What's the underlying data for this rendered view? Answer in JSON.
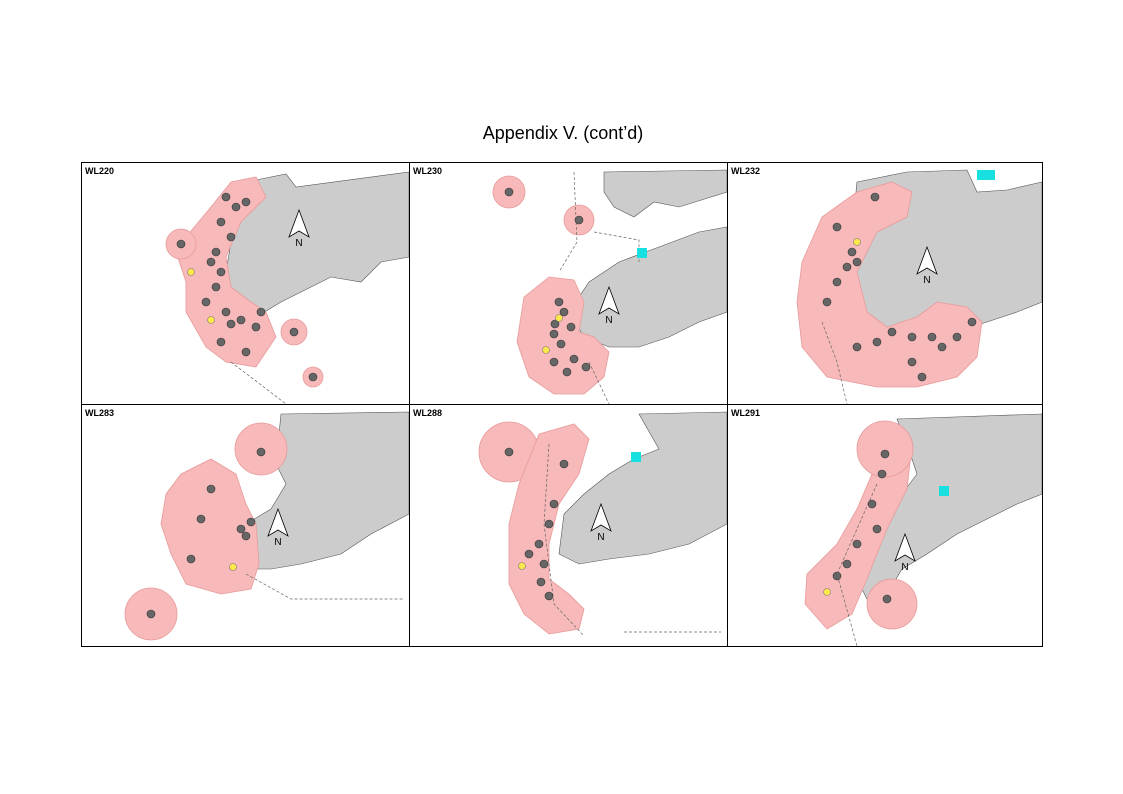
{
  "header": {
    "title": "Appendix V.  (cont’d)"
  },
  "panels": [
    {
      "label": "WL220",
      "north": "N"
    },
    {
      "label": "WL230",
      "north": "N"
    },
    {
      "label": "WL232",
      "north": "N"
    },
    {
      "label": "WL283",
      "north": "N"
    },
    {
      "label": "WL288",
      "north": "N"
    },
    {
      "label": "WL291",
      "north": "N"
    }
  ]
}
